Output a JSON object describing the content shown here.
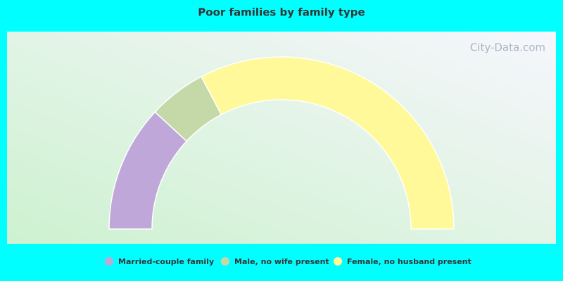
{
  "chart_data": {
    "type": "pie",
    "title": "Poor families by family type",
    "watermark": "City-Data.com",
    "categories": [
      "Married-couple family",
      "Male, no wife present",
      "Female, no husband present"
    ],
    "values": [
      23.8,
      10.8,
      65.4
    ],
    "colors": [
      "#bfa8d9",
      "#c5d8a8",
      "#fff99a"
    ]
  }
}
